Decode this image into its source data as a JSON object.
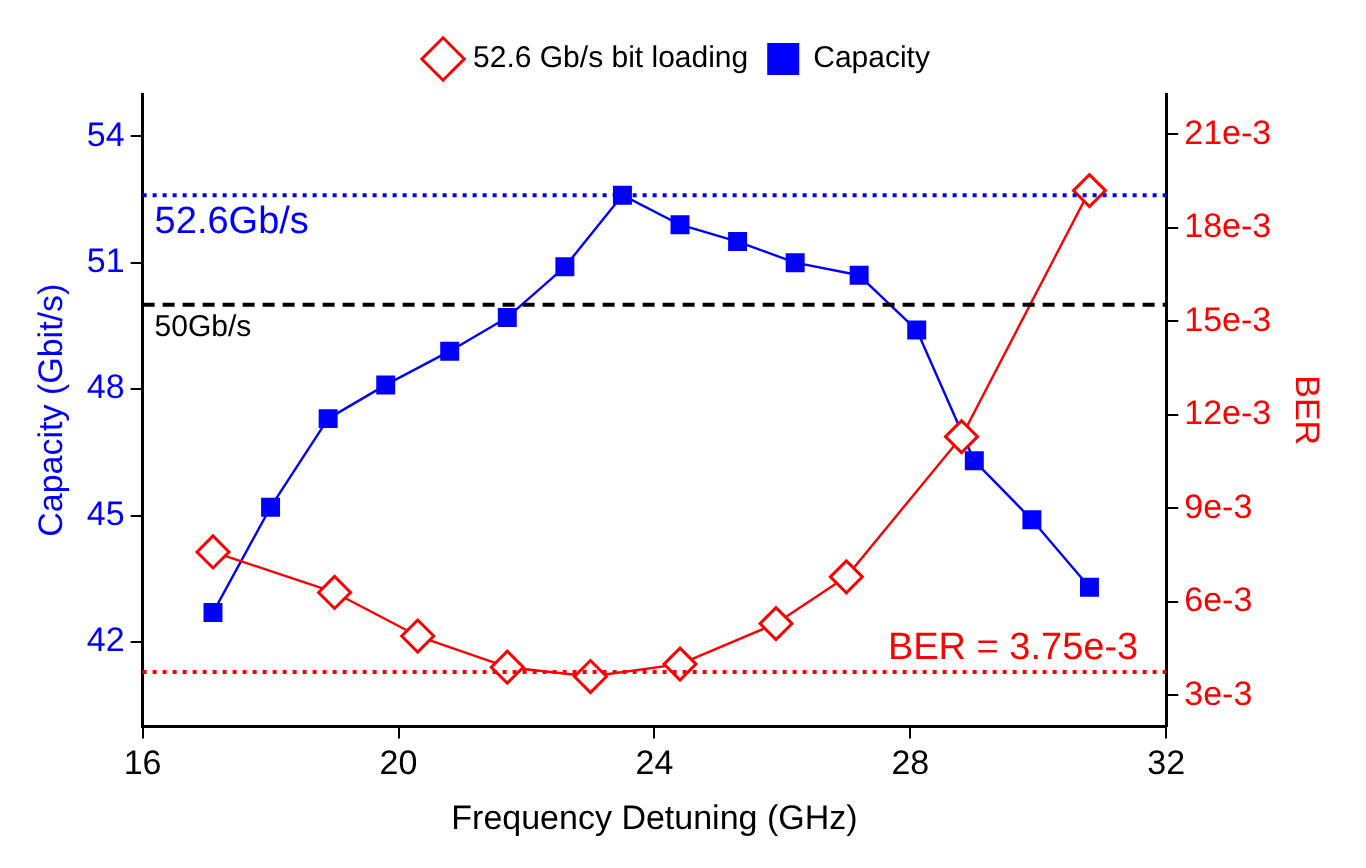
{
  "chart_data": {
    "type": "line",
    "xlabel": "Frequency Detuning (GHz)",
    "ylabel": "Capacity (Gbit/s)",
    "y2label": "BER",
    "xlim": [
      16,
      32
    ],
    "xticks": [
      16,
      20,
      24,
      28,
      32
    ],
    "ylim": [
      40,
      55
    ],
    "yticks": [
      42,
      45,
      48,
      51,
      54
    ],
    "y2lim": [
      0.002,
      0.0223
    ],
    "y2ticks": [
      {
        "value": 0.003,
        "label": "3e-3"
      },
      {
        "value": 0.006,
        "label": "6e-3"
      },
      {
        "value": 0.009,
        "label": "9e-3"
      },
      {
        "value": 0.012,
        "label": "12e-3"
      },
      {
        "value": 0.015,
        "label": "15e-3"
      },
      {
        "value": 0.018,
        "label": "18e-3"
      },
      {
        "value": 0.021,
        "label": "21e-3"
      }
    ],
    "grid": false,
    "legend": "top",
    "series": [
      {
        "name": "Capacity",
        "color": "#0000ff",
        "marker": "square",
        "x": [
          17.1,
          18.0,
          18.9,
          19.8,
          20.8,
          21.7,
          22.6,
          23.5,
          24.4,
          25.3,
          26.2,
          27.2,
          28.1,
          29.0,
          29.9,
          30.8
        ],
        "values": [
          42.7,
          45.2,
          47.3,
          48.1,
          48.9,
          49.7,
          50.9,
          52.6,
          51.9,
          51.5,
          51.0,
          50.7,
          49.4,
          46.3,
          44.9,
          43.3
        ]
      },
      {
        "name": "52.6 Gb/s bit loading",
        "color": "#ff0000",
        "marker": "diamond",
        "axis": "y2",
        "x": [
          17.1,
          19.0,
          20.3,
          21.7,
          23.0,
          24.4,
          25.9,
          27.0,
          28.8,
          30.8
        ],
        "values": [
          0.0076,
          0.0063,
          0.0049,
          0.0039,
          0.0036,
          0.004,
          0.0053,
          0.0068,
          0.0113,
          0.0192
        ]
      }
    ],
    "ref_lines": [
      {
        "axis": "y",
        "value": 50,
        "label": "50Gb/s",
        "color": "#000000",
        "line_style": "dashed"
      },
      {
        "axis": "y",
        "value": 52.6,
        "label": "52.6Gb/s",
        "color": "#0000ff",
        "line_style": "dotted"
      },
      {
        "axis": "y2",
        "value": 0.00375,
        "label": "BER = 3.75e-3",
        "color": "#ff0000",
        "line_style": "dotted"
      }
    ]
  }
}
